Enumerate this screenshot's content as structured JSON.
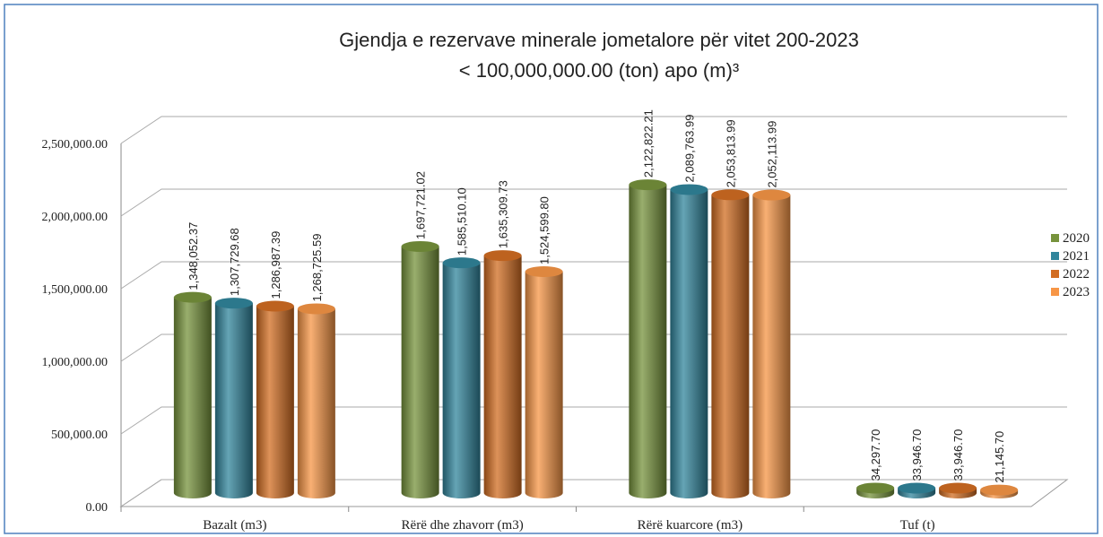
{
  "chart_data": {
    "type": "bar",
    "title": "Gjendja e rezervave minerale jometalore për vitet 200-2023",
    "subtitle": "< 100,000,000.00 (ton) apo (m)³",
    "categories": [
      "Bazalt  (m3)",
      "Rërë dhe zhavorr  (m3)",
      "Rërë kuarcore  (m3)",
      "Tuf (t)"
    ],
    "series": [
      {
        "name": "2020",
        "color": "#77933c",
        "values": [
          1348052.37,
          1697721.02,
          2122822.21,
          34297.7
        ],
        "value_labels": [
          "1,348,052.37",
          "1,697,721.02",
          "2,122,822.21",
          "34,297.70"
        ]
      },
      {
        "name": "2021",
        "color": "#31859c",
        "values": [
          1307729.68,
          1585510.1,
          2089763.99,
          33946.7
        ],
        "value_labels": [
          "1,307,729.68",
          "1,585,510.10",
          "2,089,763.99",
          "33,946.70"
        ]
      },
      {
        "name": "2022",
        "color": "#d26d22",
        "values": [
          1286987.39,
          1635309.73,
          2053813.99,
          33946.7
        ],
        "value_labels": [
          "1,286,987.39",
          "1,635,309.73",
          "2,053,813.99",
          "33,946.70"
        ]
      },
      {
        "name": "2023",
        "color": "#f79646",
        "values": [
          1268725.59,
          1524599.8,
          2052113.99,
          21145.7
        ],
        "value_labels": [
          "1,268,725.59",
          "1,524,599.80",
          "2,052,113.99",
          "21,145.70"
        ]
      }
    ],
    "ylim": [
      0,
      2500000
    ],
    "yticks": [
      {
        "value": 0,
        "label": "0.00"
      },
      {
        "value": 500000,
        "label": "500,000.00"
      },
      {
        "value": 1000000,
        "label": "1,000,000.00"
      },
      {
        "value": 1500000,
        "label": "1,500,000.00"
      },
      {
        "value": 2000000,
        "label": "2,000,000.00"
      },
      {
        "value": 2500000,
        "label": "2,500,000.00"
      }
    ],
    "grid": true,
    "legend": "right"
  }
}
